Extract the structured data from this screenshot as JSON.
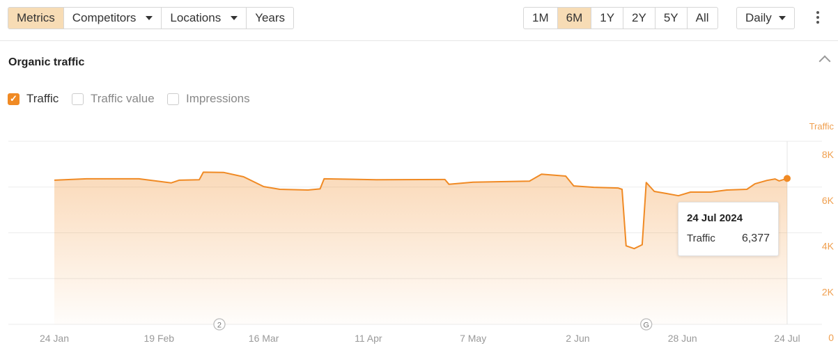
{
  "toolbar": {
    "left": [
      {
        "label": "Metrics",
        "active": true
      },
      {
        "label": "Competitors",
        "dropdown": true
      },
      {
        "label": "Locations",
        "dropdown": true
      },
      {
        "label": "Years"
      }
    ],
    "ranges": [
      {
        "label": "1M"
      },
      {
        "label": "6M",
        "active": true
      },
      {
        "label": "1Y"
      },
      {
        "label": "2Y"
      },
      {
        "label": "5Y"
      },
      {
        "label": "All"
      }
    ],
    "interval": "Daily",
    "more_icon": "kebab-vertical-icon"
  },
  "section": {
    "title": "Organic traffic",
    "collapse_icon": "chevron-up-icon"
  },
  "checkboxes": [
    {
      "label": "Traffic",
      "checked": true
    },
    {
      "label": "Traffic value",
      "checked": false
    },
    {
      "label": "Impressions",
      "checked": false
    }
  ],
  "colors": {
    "accent": "#f08a24",
    "active_bg": "#f7dcb5"
  },
  "chart_data": {
    "type": "area",
    "ylabel": "Traffic",
    "ylim": [
      0,
      8000
    ],
    "y_ticks": [
      "8K",
      "6K",
      "4K",
      "2K",
      "0"
    ],
    "y_tick_values": [
      8000,
      6000,
      4000,
      2000,
      0
    ],
    "x_ticks": [
      "24 Jan",
      "19 Feb",
      "16 Mar",
      "11 Apr",
      "7 May",
      "2 Jun",
      "28 Jun",
      "24 Jul"
    ],
    "x_tick_dates": [
      "2024-01-24",
      "2024-02-19",
      "2024-03-16",
      "2024-04-11",
      "2024-05-07",
      "2024-06-02",
      "2024-06-28",
      "2024-07-24"
    ],
    "grid": true,
    "series": [
      {
        "name": "Traffic",
        "color": "#f08a24",
        "points": [
          [
            "2024-01-24",
            6300
          ],
          [
            "2024-02-01",
            6360
          ],
          [
            "2024-02-14",
            6360
          ],
          [
            "2024-02-22",
            6180
          ],
          [
            "2024-02-24",
            6300
          ],
          [
            "2024-02-29",
            6320
          ],
          [
            "2024-03-01",
            6650
          ],
          [
            "2024-03-06",
            6640
          ],
          [
            "2024-03-11",
            6450
          ],
          [
            "2024-03-16",
            6020
          ],
          [
            "2024-03-20",
            5900
          ],
          [
            "2024-03-27",
            5870
          ],
          [
            "2024-03-30",
            5920
          ],
          [
            "2024-03-31",
            6360
          ],
          [
            "2024-04-13",
            6320
          ],
          [
            "2024-04-30",
            6330
          ],
          [
            "2024-05-01",
            6120
          ],
          [
            "2024-05-07",
            6210
          ],
          [
            "2024-05-21",
            6260
          ],
          [
            "2024-05-24",
            6560
          ],
          [
            "2024-05-30",
            6480
          ],
          [
            "2024-06-01",
            6050
          ],
          [
            "2024-06-06",
            5990
          ],
          [
            "2024-06-12",
            5960
          ],
          [
            "2024-06-13",
            5900
          ],
          [
            "2024-06-14",
            3430
          ],
          [
            "2024-06-16",
            3310
          ],
          [
            "2024-06-18",
            3480
          ],
          [
            "2024-06-19",
            6200
          ],
          [
            "2024-06-21",
            5810
          ],
          [
            "2024-06-24",
            5720
          ],
          [
            "2024-06-27",
            5620
          ],
          [
            "2024-06-30",
            5780
          ],
          [
            "2024-07-05",
            5780
          ],
          [
            "2024-07-09",
            5870
          ],
          [
            "2024-07-14",
            5900
          ],
          [
            "2024-07-16",
            6140
          ],
          [
            "2024-07-19",
            6290
          ],
          [
            "2024-07-21",
            6355
          ],
          [
            "2024-07-22",
            6270
          ],
          [
            "2024-07-24",
            6377
          ]
        ]
      }
    ],
    "annotations": [
      {
        "date": "2024-03-05",
        "label": "2"
      },
      {
        "date": "2024-06-19",
        "label": "G"
      }
    ],
    "tooltip": {
      "date": "24 Jul 2024",
      "series": "Traffic",
      "value": "6,377"
    }
  }
}
